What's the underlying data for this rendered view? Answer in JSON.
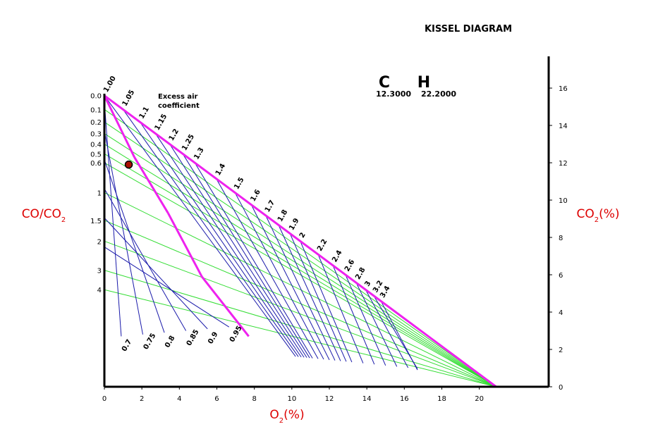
{
  "chart_data": {
    "type": "line",
    "title": "KISSEL DIAGRAM",
    "fuel": {
      "c_label": "C",
      "c_value": "12.3000",
      "h_label": "H",
      "h_value": "22.2000"
    },
    "annotation": [
      "Excess air",
      "coefficient"
    ],
    "xlabel": {
      "main": "O",
      "sub": "2",
      "unit": "(%)"
    },
    "ylabel_left": {
      "main": "CO/CO",
      "sub": "2"
    },
    "ylabel_right": {
      "main": "CO",
      "sub": "2",
      "unit": "(%)"
    },
    "xlim": [
      0,
      23.7
    ],
    "ylim": [
      0,
      17.7
    ],
    "x_ticks": [
      0,
      2,
      4,
      6,
      8,
      10,
      12,
      14,
      16,
      18,
      20
    ],
    "y_ticks": [
      0,
      2,
      4,
      6,
      8,
      10,
      12,
      14,
      16
    ],
    "max_co2": 15.6,
    "o2_air": 20.9,
    "left_ticks": [
      {
        "label": "0.0",
        "v": 0.0
      },
      {
        "label": "0.1",
        "v": 0.1
      },
      {
        "label": "0.2",
        "v": 0.2
      },
      {
        "label": "0.3",
        "v": 0.3
      },
      {
        "label": "0.4",
        "v": 0.4
      },
      {
        "label": "0.5",
        "v": 0.5
      },
      {
        "label": "0.6",
        "v": 0.6
      },
      {
        "label": "1",
        "v": 1.0
      },
      {
        "label": "1.5",
        "v": 1.5
      },
      {
        "label": "2",
        "v": 2.0
      },
      {
        "label": "3",
        "v": 3.0
      },
      {
        "label": "4",
        "v": 4.0
      }
    ],
    "lambda_rich": [
      "0.7",
      "0.75",
      "0.8",
      "0.85",
      "0.9",
      "0.95"
    ],
    "lambda_lean": [
      "1.00",
      "1.05",
      "1.1",
      "1.15",
      "1.2",
      "1.25",
      "1.3",
      "1.4",
      "1.5",
      "1.6",
      "1.7",
      "1.8",
      "1.9",
      "2",
      "2.2",
      "2.4",
      "2.6",
      "2.8",
      "3",
      "3.2",
      "3.4"
    ],
    "point": {
      "o2": 1.3,
      "co2": 11.9
    },
    "colors": {
      "ratio_lines": "#33dd33",
      "lambda_lines": "#1a1aaa",
      "boundary": "#ee22ee",
      "label_red": "#dd0000",
      "point_fill": "#aa1100"
    }
  }
}
